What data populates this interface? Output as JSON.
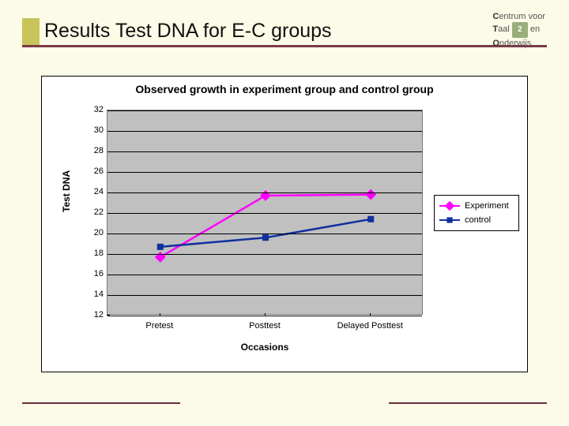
{
  "slide": {
    "title": "Results Test DNA for E-C groups",
    "background_color": "#fbfbe7",
    "title_underline_color": "#7a3a4a",
    "title_accent_color": "#c9c45a",
    "title_fontsize": 25
  },
  "logo": {
    "line1_a": "C",
    "line1_b": "entrum voor",
    "line2_a": "T",
    "line2_b": "aal",
    "line2_c": "en",
    "line3_a": "O",
    "line3_b": "nderwijs",
    "square_text": "2",
    "square_color": "#9aae7a"
  },
  "chart": {
    "type": "line",
    "title": "Observed growth in experiment group and control group",
    "title_fontsize": 14,
    "xlabel": "Occasions",
    "ylabel": "Test DNA",
    "label_fontsize": 12,
    "background_color": "#ffffff",
    "plot_bg_color": "#c0c0c0",
    "grid_color": "#000000",
    "border_color": "#000000",
    "ylim": [
      12,
      32
    ],
    "ytick_step": 2,
    "yticks": [
      12,
      14,
      16,
      18,
      20,
      22,
      24,
      26,
      28,
      30,
      32
    ],
    "categories": [
      "Pretest",
      "Posttest",
      "Delayed Posttest"
    ],
    "x_positions": [
      0.167,
      0.5,
      0.833
    ],
    "series": [
      {
        "name": "Experiment",
        "color": "#ff00ff",
        "marker": "diamond",
        "marker_size": 9,
        "line_width": 2.5,
        "values": [
          17.7,
          23.7,
          23.8
        ]
      },
      {
        "name": "control",
        "color": "#1030a0",
        "marker": "square",
        "marker_size": 8,
        "line_width": 2.5,
        "values": [
          18.7,
          19.6,
          21.4
        ]
      }
    ],
    "legend": {
      "position": "right",
      "border_color": "#000000",
      "bg": "#ffffff",
      "fontsize": 11
    }
  },
  "footer": {
    "rule_color": "#6a2e3e"
  }
}
